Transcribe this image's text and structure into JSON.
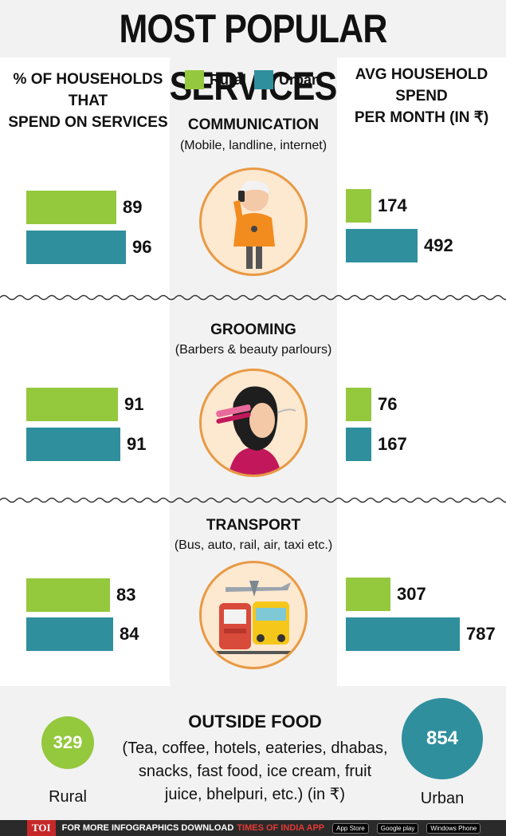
{
  "title": "MOST POPULAR SERVICES",
  "left_header": [
    "% OF HOUSEHOLDS THAT",
    "SPEND ON SERVICES"
  ],
  "right_header": [
    "AVG HOUSEHOLD SPEND",
    "PER MONTH (IN ₹)"
  ],
  "legend": {
    "rural": "Rural",
    "urban": "Urban"
  },
  "colors": {
    "rural": "#94c83d",
    "urban": "#2f8f9d",
    "icon_bg": "#fde8d0",
    "icon_border": "#e89a45"
  },
  "chart_data": {
    "type": "bar",
    "categories": [
      {
        "name": "COMMUNICATION",
        "sub": "(Mobile, landline, internet)",
        "icon": "phone-man-icon",
        "pct_rural": 89,
        "pct_urban": 96,
        "spend_rural": 174,
        "spend_urban": 492
      },
      {
        "name": "GROOMING",
        "sub": "(Barbers & beauty parlours)",
        "icon": "hair-straightener-woman-icon",
        "pct_rural": 91,
        "pct_urban": 91,
        "spend_rural": 76,
        "spend_urban": 167
      },
      {
        "name": "TRANSPORT",
        "sub": "(Bus, auto, rail, air, taxi etc.)",
        "icon": "train-bus-plane-icon",
        "pct_rural": 83,
        "pct_urban": 84,
        "spend_rural": 307,
        "spend_urban": 787
      }
    ],
    "outside_food": {
      "title": "OUTSIDE FOOD",
      "sub_lines": [
        "(Tea, coffee, hotels, eateries, dhabas,",
        "snacks, fast food, ice cream, fruit",
        "juice, bhelpuri, etc.) (in ₹)"
      ],
      "rural": 329,
      "urban": 854,
      "rural_label": "Rural",
      "urban_label": "Urban"
    }
  },
  "footer": {
    "logo": "TOI",
    "text": "FOR MORE  INFOGRAPHICS DOWNLOAD",
    "app": "TIMES OF INDIA APP",
    "stores": [
      "App Store",
      "Google play",
      "Windows Phone"
    ]
  }
}
